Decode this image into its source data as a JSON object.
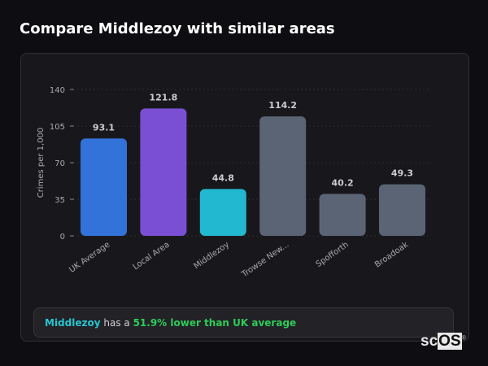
{
  "header": {
    "title": "Compare Middlezoy with similar areas"
  },
  "chart_data": {
    "type": "bar",
    "categories": [
      "UK Average",
      "Local Area",
      "Middlezoy",
      "Trowse New...",
      "Spofforth",
      "Broadoak"
    ],
    "values": [
      93.1,
      121.8,
      44.8,
      114.2,
      40.2,
      49.3
    ],
    "data_labels": [
      "93.1",
      "121.8",
      "44.8",
      "114.2",
      "40.2",
      "49.3"
    ],
    "colors": [
      "#3272d9",
      "#7b4fd4",
      "#22b8cf",
      "#5a6474",
      "#5a6474",
      "#5a6474"
    ],
    "ylabel": "Crimes per 1,000",
    "xlabel": "",
    "ylim": [
      0,
      140
    ],
    "yticks": [
      0,
      35,
      70,
      105,
      140
    ],
    "grid": true
  },
  "summary": {
    "area": "Middlezoy",
    "text": " has a ",
    "highlight": "51.9% lower than UK average"
  },
  "logo": {
    "text_a": "sc",
    "text_b": "OS",
    "mark": "®"
  }
}
